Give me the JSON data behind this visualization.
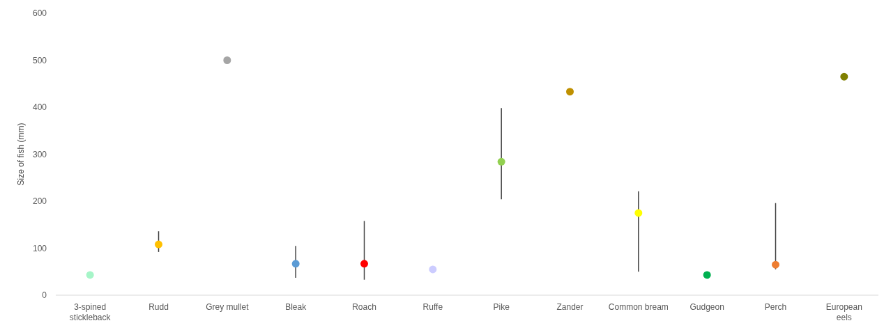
{
  "chart_data": {
    "type": "scatter",
    "ylabel": "Size of fish (mm)",
    "categories": [
      "3-spined stickleback",
      "Rudd",
      "Grey mullet",
      "Bleak",
      "Roach",
      "Ruffe",
      "Pike",
      "Zander",
      "Common bream",
      "Gudgeon",
      "Perch",
      "European eels"
    ],
    "values": [
      43,
      108,
      500,
      67,
      67,
      55,
      284,
      433,
      175,
      43,
      65,
      465
    ],
    "colors": [
      "#a6f5c8",
      "#ffc000",
      "#a5a5a5",
      "#5b9bd5",
      "#ff0000",
      "#ccccff",
      "#92d050",
      "#bf9000",
      "#ffff00",
      "#00b050",
      "#ed7d31",
      "#808000"
    ],
    "errors": [
      null,
      [
        92,
        136
      ],
      null,
      [
        37,
        105
      ],
      [
        33,
        158
      ],
      null,
      [
        204,
        398
      ],
      null,
      [
        50,
        221
      ],
      null,
      [
        55,
        196
      ],
      null
    ],
    "ylim": [
      0,
      600
    ],
    "yticks": [
      0,
      100,
      200,
      300,
      400,
      500,
      600
    ],
    "marker": "circle",
    "grid": false
  }
}
